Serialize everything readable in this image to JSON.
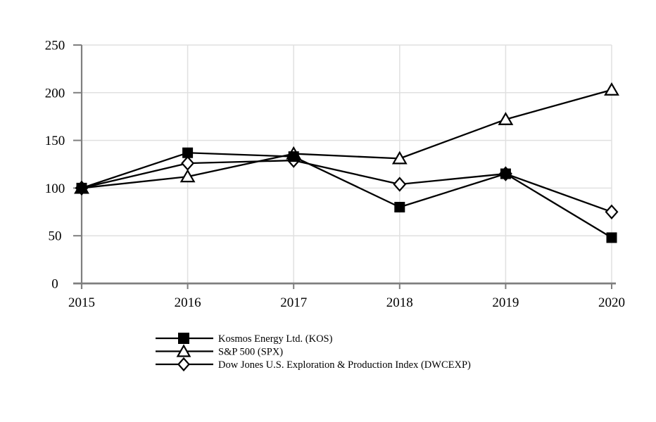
{
  "page": {
    "background": "#ffffff"
  },
  "chart_data": {
    "type": "line",
    "title": "",
    "xlabel": "",
    "ylabel": "",
    "x": [
      "2015",
      "2016",
      "2017",
      "2018",
      "2019",
      "2020"
    ],
    "yticks": [
      "0",
      "50",
      "100",
      "150",
      "200",
      "250"
    ],
    "ylim": [
      0,
      250
    ],
    "grid": true,
    "legend_position": "bottom-left",
    "series": [
      {
        "name": "Kosmos Energy Ltd. (KOS)",
        "marker": "filled-square",
        "color": "#000000",
        "values": [
          100,
          137,
          133,
          80,
          115,
          48
        ]
      },
      {
        "name": "S&P 500 (SPX)",
        "marker": "open-triangle",
        "color": "#000000",
        "values": [
          100,
          112,
          136,
          131,
          172,
          203
        ]
      },
      {
        "name": "Dow Jones U.S. Exploration & Production Index (DWCEXP)",
        "marker": "open-diamond",
        "color": "#000000",
        "values": [
          100,
          126,
          129,
          104,
          115,
          75
        ]
      }
    ],
    "colors": {
      "line": "#000000",
      "grid": "#e0e0e0",
      "axis": "#7f7f7f",
      "text": "#000000",
      "background": "#ffffff",
      "open_marker_fill": "#ffffff"
    }
  }
}
